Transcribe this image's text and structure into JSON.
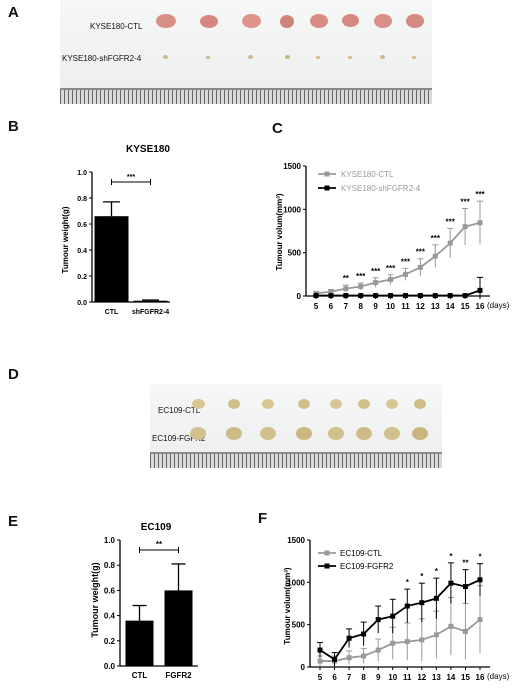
{
  "panels": {
    "A": "A",
    "B": "B",
    "C": "C",
    "D": "D",
    "E": "E",
    "F": "F"
  },
  "photo_a": {
    "row1_label": "KYSE180-CTL",
    "row2_label": "KYSE180-shFGFR2-4"
  },
  "photo_d": {
    "row1_label": "EC109-CTL",
    "row2_label": "EC109-FGFR2"
  },
  "colors": {
    "ctl_gray": "#999999",
    "treat_black": "#000000",
    "tumor_pink": "#d98e84",
    "tumor_beige": "#d2c28e"
  },
  "chart_data": [
    {
      "id": "B",
      "type": "bar",
      "title": "KYSE180",
      "ylabel": "Tumour weight(g)",
      "categories": [
        "CTL",
        "shFGFR2-4"
      ],
      "values": [
        0.66,
        0.01
      ],
      "errors": [
        0.11,
        0.005
      ],
      "ylim": [
        0,
        1.0
      ],
      "yticks": [
        "0.0",
        "0.2",
        "0.4",
        "0.6",
        "0.8",
        "1.0"
      ],
      "significance": "***"
    },
    {
      "id": "C",
      "type": "line",
      "ylabel": "Tumour volum(mm³)",
      "x": [
        5,
        6,
        7,
        8,
        9,
        10,
        11,
        12,
        13,
        14,
        15,
        16
      ],
      "xunit": "(days)",
      "ylim": [
        0,
        1500
      ],
      "yticks": [
        "0",
        "500",
        "1000",
        "1500"
      ],
      "series": [
        {
          "name": "KYSE180-CTL",
          "color": "#999999",
          "values": [
            30,
            50,
            85,
            110,
            155,
            190,
            250,
            330,
            460,
            610,
            800,
            845
          ],
          "errors": [
            20,
            25,
            40,
            40,
            55,
            55,
            70,
            100,
            130,
            170,
            210,
            250
          ]
        },
        {
          "name": "KYSE180-shFGFR2-4",
          "color": "#000000",
          "values": [
            5,
            5,
            5,
            5,
            5,
            5,
            5,
            5,
            5,
            5,
            5,
            65
          ],
          "errors": [
            5,
            5,
            5,
            5,
            5,
            5,
            5,
            5,
            5,
            5,
            5,
            150
          ]
        }
      ],
      "stars": [
        null,
        null,
        "**",
        "***",
        "***",
        "***",
        "***",
        "***",
        "***",
        "***",
        "***",
        "***"
      ],
      "legend": "top-left"
    },
    {
      "id": "E",
      "type": "bar",
      "title": "EC109",
      "ylabel": "Tumour weight(g)",
      "categories": [
        "CTL",
        "FGFR2"
      ],
      "values": [
        0.36,
        0.6
      ],
      "errors": [
        0.12,
        0.21
      ],
      "ylim": [
        0,
        1.0
      ],
      "yticks": [
        "0.0",
        "0.2",
        "0.4",
        "0.6",
        "0.8",
        "1.0"
      ],
      "significance": "**"
    },
    {
      "id": "F",
      "type": "line",
      "ylabel": "Tumour volum(mm³)",
      "x": [
        5,
        6,
        7,
        8,
        9,
        10,
        11,
        12,
        13,
        14,
        15,
        16
      ],
      "xunit": "(days)",
      "ylim": [
        0,
        1500
      ],
      "yticks": [
        "0",
        "500",
        "1000",
        "1500"
      ],
      "series": [
        {
          "name": "EC109-CTL",
          "color": "#999999",
          "values": [
            70,
            70,
            110,
            130,
            200,
            280,
            300,
            320,
            380,
            480,
            420,
            560
          ],
          "errors": [
            60,
            60,
            80,
            90,
            130,
            190,
            220,
            250,
            280,
            340,
            330,
            400
          ]
        },
        {
          "name": "EC109-FGFR2",
          "color": "#000000",
          "values": [
            200,
            90,
            340,
            390,
            560,
            600,
            720,
            760,
            810,
            990,
            950,
            1030
          ],
          "errors": [
            90,
            80,
            110,
            140,
            160,
            200,
            200,
            230,
            240,
            240,
            200,
            190
          ]
        }
      ],
      "stars": [
        null,
        null,
        null,
        null,
        null,
        null,
        "*",
        "*",
        "*",
        "*",
        "**",
        "*"
      ],
      "legend": "top-left"
    }
  ]
}
